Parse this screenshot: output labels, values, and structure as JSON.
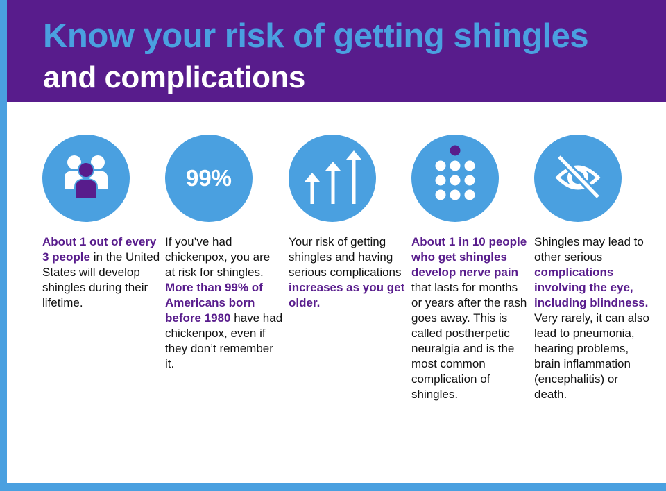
{
  "header": {
    "title_line1": "Know your risk of getting shingles",
    "title_line2": "and complications"
  },
  "colors": {
    "purple": "#581c8c",
    "blue": "#4aa0e0"
  },
  "columns": [
    {
      "icon": "people-group-icon",
      "parts": [
        {
          "text": "About 1 out of every 3 people",
          "highlight": true
        },
        {
          "text": " in the United States will develop shingles during their lifetime.",
          "highlight": false
        }
      ]
    },
    {
      "icon": "percent-99-icon",
      "icon_text": "99%",
      "parts": [
        {
          "text": "If you’ve had chickenpox, you are at risk for shingles. ",
          "highlight": false
        },
        {
          "text": "More than 99% of Americans born before 1980",
          "highlight": true
        },
        {
          "text": " have had chickenpox, even if they don’t remember it.",
          "highlight": false
        }
      ]
    },
    {
      "icon": "rising-arrows-icon",
      "parts": [
        {
          "text": "Your risk of getting shingles and having serious complications ",
          "highlight": false
        },
        {
          "text": "increases as you get older.",
          "highlight": true
        }
      ]
    },
    {
      "icon": "one-in-ten-dots-icon",
      "parts": [
        {
          "text": "About 1 in 10 people who get shingles develop nerve pain",
          "highlight": true
        },
        {
          "text": " that lasts for months or years after the rash goes away. This is called postherpetic neuralgia and is the most common complication of shingles.",
          "highlight": false
        }
      ]
    },
    {
      "icon": "eye-slash-icon",
      "parts": [
        {
          "text": "Shingles may lead to other serious ",
          "highlight": false
        },
        {
          "text": "complications involving the eye, including blindness.",
          "highlight": true
        },
        {
          "text": " Very rarely, it can also lead to pneumonia, hearing problems, brain inflammation (encephalitis) or death.",
          "highlight": false
        }
      ]
    }
  ]
}
